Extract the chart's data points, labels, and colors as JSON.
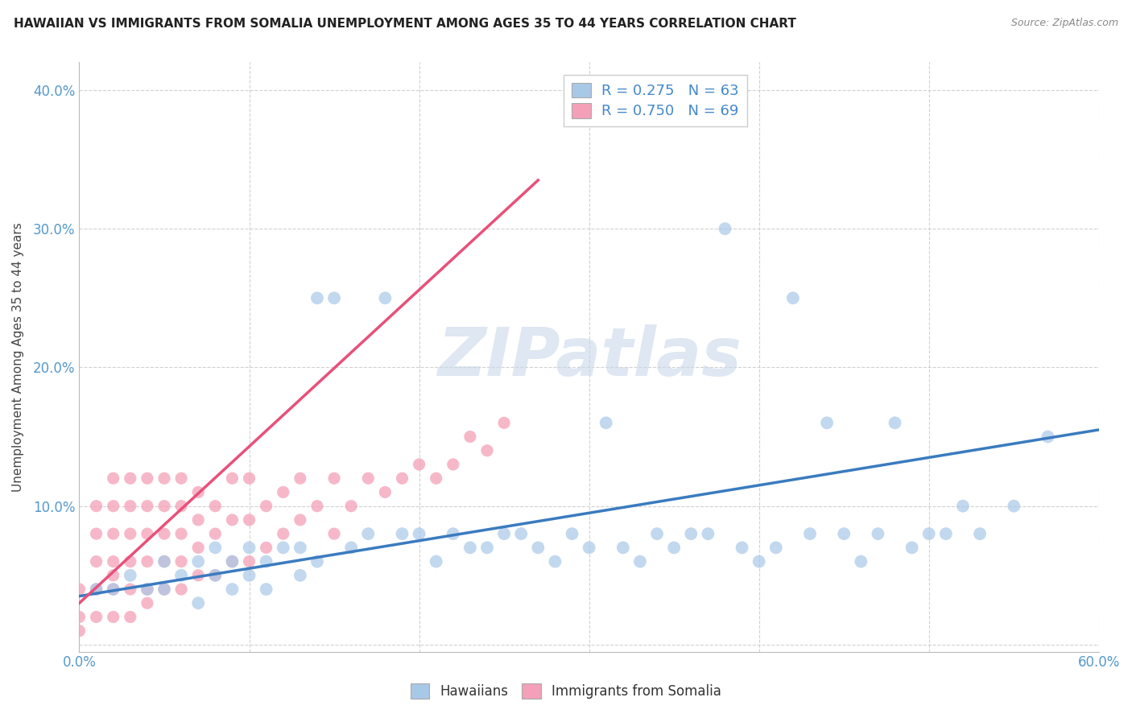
{
  "title": "HAWAIIAN VS IMMIGRANTS FROM SOMALIA UNEMPLOYMENT AMONG AGES 35 TO 44 YEARS CORRELATION CHART",
  "source": "Source: ZipAtlas.com",
  "ylabel": "Unemployment Among Ages 35 to 44 years",
  "xlim": [
    0.0,
    0.6
  ],
  "ylim": [
    -0.005,
    0.42
  ],
  "hawaii_color": "#a8c8e8",
  "somalia_color": "#f4a0b8",
  "hawaii_line_color": "#3a7bbf",
  "somalia_line_color": "#e8507a",
  "hawaii_R": 0.275,
  "hawaii_N": 63,
  "somalia_R": 0.75,
  "somalia_N": 69,
  "watermark": "ZIPatlas",
  "watermark_color": "#c8d8ea",
  "hawaii_x": [
    0.01,
    0.02,
    0.03,
    0.04,
    0.05,
    0.05,
    0.06,
    0.07,
    0.07,
    0.08,
    0.08,
    0.09,
    0.09,
    0.1,
    0.1,
    0.11,
    0.11,
    0.12,
    0.13,
    0.13,
    0.14,
    0.14,
    0.15,
    0.16,
    0.17,
    0.18,
    0.19,
    0.2,
    0.21,
    0.22,
    0.23,
    0.24,
    0.25,
    0.26,
    0.27,
    0.28,
    0.29,
    0.3,
    0.31,
    0.32,
    0.33,
    0.34,
    0.35,
    0.36,
    0.37,
    0.38,
    0.39,
    0.4,
    0.41,
    0.42,
    0.43,
    0.44,
    0.45,
    0.46,
    0.47,
    0.48,
    0.49,
    0.5,
    0.51,
    0.52,
    0.53,
    0.55,
    0.57
  ],
  "hawaii_y": [
    0.04,
    0.04,
    0.05,
    0.04,
    0.06,
    0.04,
    0.05,
    0.06,
    0.03,
    0.05,
    0.07,
    0.06,
    0.04,
    0.07,
    0.05,
    0.06,
    0.04,
    0.07,
    0.07,
    0.05,
    0.25,
    0.06,
    0.25,
    0.07,
    0.08,
    0.25,
    0.08,
    0.08,
    0.06,
    0.08,
    0.07,
    0.07,
    0.08,
    0.08,
    0.07,
    0.06,
    0.08,
    0.07,
    0.16,
    0.07,
    0.06,
    0.08,
    0.07,
    0.08,
    0.08,
    0.3,
    0.07,
    0.06,
    0.07,
    0.25,
    0.08,
    0.16,
    0.08,
    0.06,
    0.08,
    0.16,
    0.07,
    0.08,
    0.08,
    0.1,
    0.08,
    0.1,
    0.15
  ],
  "somalia_x": [
    0.0,
    0.0,
    0.0,
    0.01,
    0.01,
    0.01,
    0.01,
    0.01,
    0.02,
    0.02,
    0.02,
    0.02,
    0.02,
    0.02,
    0.02,
    0.03,
    0.03,
    0.03,
    0.03,
    0.03,
    0.03,
    0.04,
    0.04,
    0.04,
    0.04,
    0.04,
    0.04,
    0.05,
    0.05,
    0.05,
    0.05,
    0.05,
    0.06,
    0.06,
    0.06,
    0.06,
    0.06,
    0.07,
    0.07,
    0.07,
    0.07,
    0.08,
    0.08,
    0.08,
    0.09,
    0.09,
    0.09,
    0.1,
    0.1,
    0.1,
    0.11,
    0.11,
    0.12,
    0.12,
    0.13,
    0.13,
    0.14,
    0.15,
    0.15,
    0.16,
    0.17,
    0.18,
    0.19,
    0.2,
    0.21,
    0.22,
    0.23,
    0.24,
    0.25
  ],
  "somalia_y": [
    0.01,
    0.02,
    0.04,
    0.02,
    0.04,
    0.06,
    0.08,
    0.1,
    0.02,
    0.04,
    0.05,
    0.06,
    0.08,
    0.1,
    0.12,
    0.02,
    0.04,
    0.06,
    0.08,
    0.1,
    0.12,
    0.03,
    0.04,
    0.06,
    0.08,
    0.1,
    0.12,
    0.04,
    0.06,
    0.08,
    0.1,
    0.12,
    0.04,
    0.06,
    0.08,
    0.1,
    0.12,
    0.05,
    0.07,
    0.09,
    0.11,
    0.05,
    0.08,
    0.1,
    0.06,
    0.09,
    0.12,
    0.06,
    0.09,
    0.12,
    0.07,
    0.1,
    0.08,
    0.11,
    0.09,
    0.12,
    0.1,
    0.08,
    0.12,
    0.1,
    0.12,
    0.11,
    0.12,
    0.13,
    0.12,
    0.13,
    0.15,
    0.14,
    0.16
  ],
  "hawaii_trend_x": [
    0.0,
    0.6
  ],
  "hawaii_trend_y": [
    0.035,
    0.155
  ],
  "somalia_trend_x": [
    0.0,
    0.27
  ],
  "somalia_trend_y": [
    0.03,
    0.335
  ]
}
